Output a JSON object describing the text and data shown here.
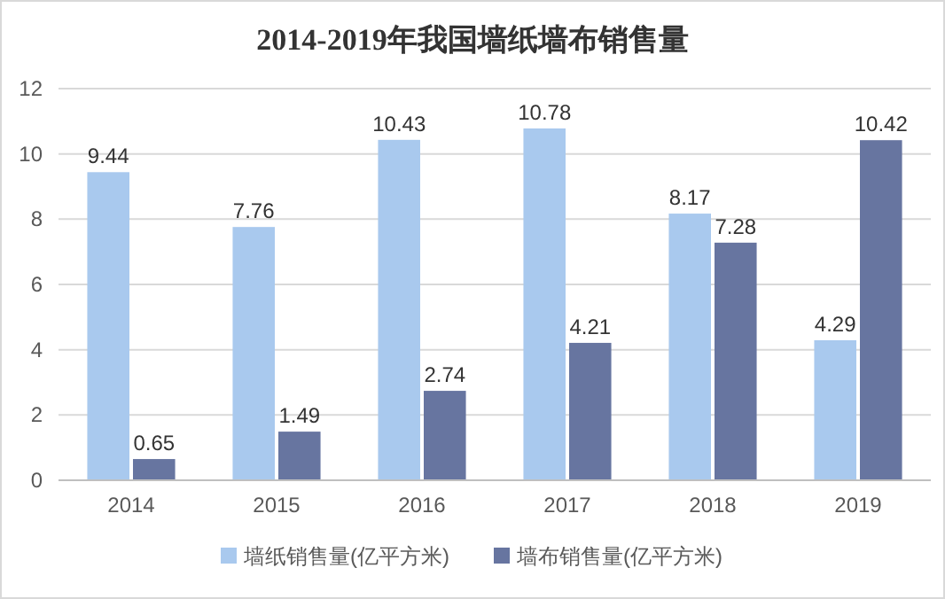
{
  "chart_data": {
    "type": "bar",
    "title": "2014-2019年我国墙纸墙布销售量",
    "categories": [
      "2014",
      "2015",
      "2016",
      "2017",
      "2018",
      "2019"
    ],
    "series": [
      {
        "name": "墙纸销售量(亿平方米)",
        "color": "#a9c9ee",
        "values": [
          9.44,
          7.76,
          10.43,
          10.78,
          8.17,
          4.29
        ]
      },
      {
        "name": "墙布销售量(亿平方米)",
        "color": "#6775a0",
        "values": [
          0.65,
          1.49,
          2.74,
          4.21,
          7.28,
          10.42
        ]
      }
    ],
    "ylim": [
      0,
      12
    ],
    "yticks": [
      0,
      2,
      4,
      6,
      8,
      10,
      12
    ],
    "grid": "y",
    "legend": "bottom",
    "data_labels": true
  }
}
